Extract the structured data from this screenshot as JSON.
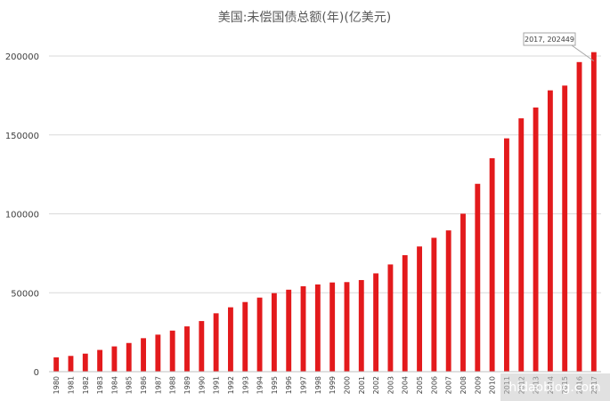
{
  "chart_data": {
    "type": "bar",
    "title": "美国:未偿国债总额(年)(亿美元)",
    "xlabel": "",
    "ylabel": "",
    "ylim": [
      0,
      210000
    ],
    "yticks": [
      0,
      50000,
      100000,
      150000,
      200000
    ],
    "grid": "horizontal",
    "legend": "none",
    "bar_color": "#e31a1c",
    "categories": [
      "1980",
      "1981",
      "1982",
      "1983",
      "1984",
      "1985",
      "1986",
      "1987",
      "1988",
      "1989",
      "1990",
      "1991",
      "1992",
      "1993",
      "1994",
      "1995",
      "1996",
      "1997",
      "1998",
      "1999",
      "2000",
      "2001",
      "2002",
      "2003",
      "2004",
      "2005",
      "2006",
      "2007",
      "2008",
      "2009",
      "2010",
      "2011",
      "2012",
      "2013",
      "2014",
      "2015",
      "2016",
      "2017"
    ],
    "values": [
      9075,
      9978,
      11422,
      13771,
      16005,
      18167,
      21204,
      23453,
      26021,
      28680,
      32065,
      36988,
      40785,
      44114,
      46926,
      49745,
      51934,
      54134,
      55261,
      56513,
      56741,
      58046,
      62283,
      67931,
      73797,
      79320,
      84815,
      89503,
      100085,
      119021,
      135251,
      147833,
      160510,
      167384,
      178243,
      181262,
      196164,
      202449
    ],
    "annotation": {
      "label": "2017, 202449"
    }
  },
  "watermark": "hidaoblog.com"
}
